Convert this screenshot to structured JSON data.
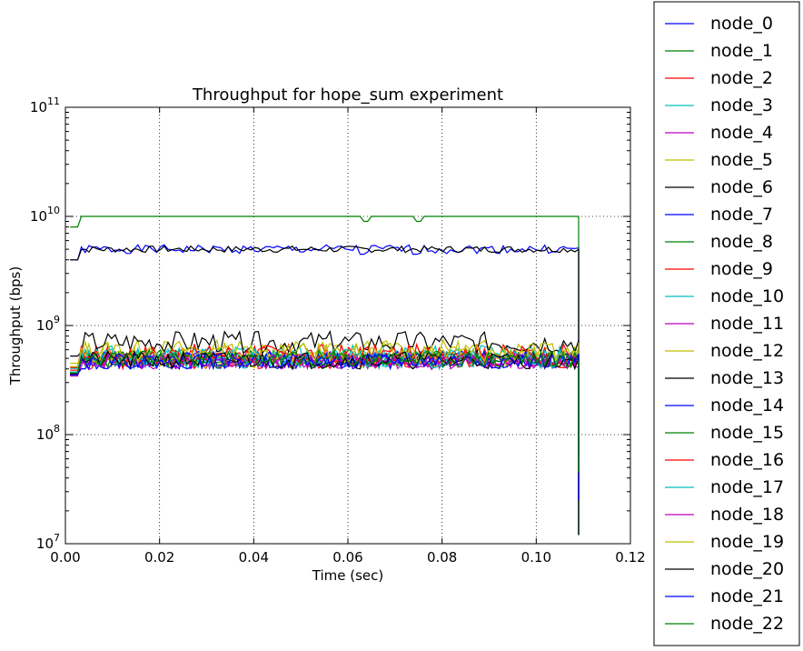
{
  "chart_data": {
    "type": "line",
    "title": "Throughput for hope_sum experiment",
    "xlabel": "Time (sec)",
    "ylabel": "Throughput (bps)",
    "xscale": "linear",
    "yscale": "log",
    "xlim": [
      0.0,
      0.12
    ],
    "ylim": [
      10000000,
      100000000000
    ],
    "xticks": [
      0.0,
      0.02,
      0.04,
      0.06,
      0.08,
      0.1,
      0.12
    ],
    "xtick_labels": [
      "0.00",
      "0.02",
      "0.04",
      "0.06",
      "0.08",
      "0.10",
      "0.12"
    ],
    "yticks": [
      10000000,
      100000000,
      1000000000,
      10000000000,
      100000000000
    ],
    "ytick_labels": [
      {
        "base": "10",
        "exp": "7"
      },
      {
        "base": "10",
        "exp": "8"
      },
      {
        "base": "10",
        "exp": "9"
      },
      {
        "base": "10",
        "exp": "10"
      },
      {
        "base": "10",
        "exp": "11"
      }
    ],
    "grid": true,
    "legend_position": "outside-right",
    "colors": [
      "#0000ff",
      "#008000",
      "#ff0000",
      "#00bfbf",
      "#bf00bf",
      "#bfbf00",
      "#000000"
    ],
    "series": [
      {
        "name": "node_0",
        "level": 5000000000,
        "noise": 0.04,
        "seed": 1
      },
      {
        "name": "node_1",
        "level": 10000000000,
        "noise": 0.0,
        "seed": 2
      },
      {
        "name": "node_2",
        "level": 470000000,
        "noise": 0.07,
        "seed": 3
      },
      {
        "name": "node_3",
        "level": 480000000,
        "noise": 0.08,
        "seed": 4
      },
      {
        "name": "node_4",
        "level": 460000000,
        "noise": 0.07,
        "seed": 5
      },
      {
        "name": "node_5",
        "level": 480000000,
        "noise": 0.07,
        "seed": 6
      },
      {
        "name": "node_6",
        "level": 5000000000,
        "noise": 0.03,
        "seed": 7
      },
      {
        "name": "node_7",
        "level": 490000000,
        "noise": 0.08,
        "seed": 8
      },
      {
        "name": "node_8",
        "level": 500000000,
        "noise": 0.08,
        "seed": 9
      },
      {
        "name": "node_9",
        "level": 520000000,
        "noise": 0.09,
        "seed": 10
      },
      {
        "name": "node_10",
        "level": 540000000,
        "noise": 0.09,
        "seed": 11
      },
      {
        "name": "node_11",
        "level": 470000000,
        "noise": 0.07,
        "seed": 12
      },
      {
        "name": "node_12",
        "level": 600000000,
        "noise": 0.09,
        "seed": 13
      },
      {
        "name": "node_13",
        "level": 700000000,
        "noise": 0.1,
        "seed": 14
      },
      {
        "name": "node_14",
        "level": 480000000,
        "noise": 0.08,
        "seed": 15
      },
      {
        "name": "node_15",
        "level": 490000000,
        "noise": 0.07,
        "seed": 16
      },
      {
        "name": "node_16",
        "level": 550000000,
        "noise": 0.09,
        "seed": 17
      },
      {
        "name": "node_17",
        "level": 500000000,
        "noise": 0.09,
        "seed": 18
      },
      {
        "name": "node_18",
        "level": 470000000,
        "noise": 0.07,
        "seed": 19
      },
      {
        "name": "node_19",
        "level": 560000000,
        "noise": 0.09,
        "seed": 20
      },
      {
        "name": "node_20",
        "level": 480000000,
        "noise": 0.08,
        "seed": 21
      },
      {
        "name": "node_21",
        "level": 470000000,
        "noise": 0.07,
        "seed": 22
      },
      {
        "name": "node_22",
        "level": 490000000,
        "noise": 0.08,
        "seed": 23
      }
    ],
    "x_start": 0.001,
    "x_end": 0.109,
    "x_step": 0.0008,
    "drop_at": 0.109,
    "dips": [
      {
        "series": "node_1",
        "x": 0.064,
        "value": 9000000000
      },
      {
        "series": "node_1",
        "x": 0.075,
        "value": 9000000000
      },
      {
        "series": "node_0",
        "x": 0.063,
        "value": 4500000000
      },
      {
        "series": "node_0",
        "x": 0.074,
        "value": 4500000000
      }
    ],
    "end_values": [
      12000000,
      25000000,
      45000000,
      60000000,
      700000000
    ]
  }
}
